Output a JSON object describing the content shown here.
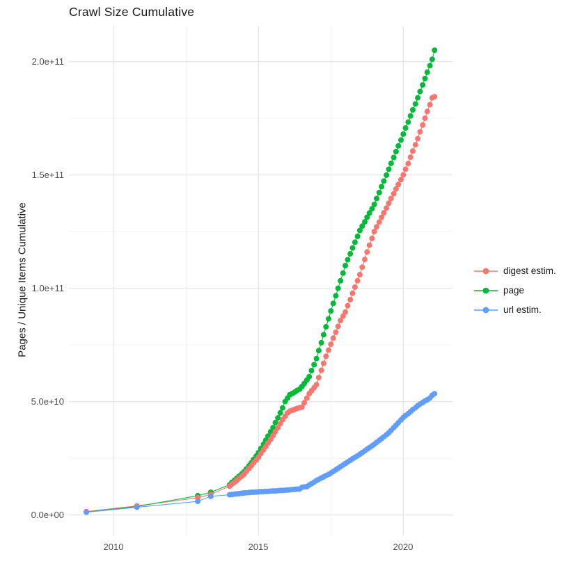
{
  "title": "Crawl Size Cumulative",
  "y_axis": {
    "title": "Pages / Unique Items Cumulative",
    "ticks": [
      "0.0e+00",
      "5.0e+10",
      "1.0e+11",
      "1.5e+11",
      "2.0e+11"
    ],
    "tick_values_billions": [
      0,
      50,
      100,
      150,
      200
    ]
  },
  "x_axis": {
    "title": "",
    "ticks": [
      "2010",
      "2015",
      "2020"
    ],
    "tick_values": [
      2010,
      2015,
      2020
    ]
  },
  "legend": {
    "items": [
      {
        "label": "digest estim.",
        "color": "#F8766D"
      },
      {
        "label": "page",
        "color": "#00BA38"
      },
      {
        "label": "url estim.",
        "color": "#619CFF"
      }
    ]
  },
  "colors": {
    "digest": "#F8766D",
    "page": "#00BA38",
    "url": "#619CFF",
    "grid_major": "#e6e6e6",
    "grid_minor": "#f1f1f1",
    "tick_label": "#4d4d4d",
    "text": "#1a1a1a",
    "background": "#ffffff"
  },
  "chart_data": {
    "type": "scatter",
    "title": "Crawl Size Cumulative",
    "xlabel": "",
    "ylabel": "Pages / Unique Items Cumulative",
    "legend_position": "right",
    "grid": true,
    "y_unit_multiplier": 1000000000.0,
    "y_values_note": "y values are in billions (1e9) of pages / unique items, cumulative over Common Crawl releases",
    "xlim": [
      2008.45,
      2021.7
    ],
    "ylim_billions": [
      -9,
      215.5
    ],
    "x_major_gridlines": [
      2010,
      2015,
      2020
    ],
    "x_minor_gridlines": [
      2012.5,
      2017.5
    ],
    "y_major_gridlines_billions": [
      0,
      50,
      100,
      150,
      200
    ],
    "y_minor_gridlines_billions": [
      25,
      75,
      125,
      175
    ],
    "x": [
      2009.05,
      2010.8,
      2012.9,
      2013.35,
      2014.0,
      2014.08,
      2014.17,
      2014.25,
      2014.33,
      2014.42,
      2014.5,
      2014.58,
      2014.67,
      2014.75,
      2014.83,
      2014.92,
      2015.0,
      2015.08,
      2015.17,
      2015.25,
      2015.33,
      2015.42,
      2015.5,
      2015.58,
      2015.67,
      2015.75,
      2015.83,
      2015.92,
      2016.0,
      2016.08,
      2016.17,
      2016.25,
      2016.33,
      2016.42,
      2016.5,
      2016.58,
      2016.67,
      2016.75,
      2016.83,
      2016.92,
      2017.0,
      2017.08,
      2017.17,
      2017.25,
      2017.33,
      2017.42,
      2017.5,
      2017.58,
      2017.67,
      2017.75,
      2017.83,
      2017.92,
      2018.0,
      2018.08,
      2018.17,
      2018.25,
      2018.33,
      2018.42,
      2018.5,
      2018.58,
      2018.67,
      2018.75,
      2018.83,
      2018.92,
      2019.0,
      2019.08,
      2019.17,
      2019.25,
      2019.33,
      2019.42,
      2019.5,
      2019.58,
      2019.67,
      2019.75,
      2019.83,
      2019.92,
      2020.0,
      2020.08,
      2020.17,
      2020.25,
      2020.33,
      2020.42,
      2020.5,
      2020.58,
      2020.67,
      2020.75,
      2020.83,
      2020.92,
      2021.0,
      2021.08
    ],
    "series": [
      {
        "id": "digest",
        "name": "digest estim.",
        "color": "#F8766D",
        "y": [
          1.5,
          4.0,
          7.6,
          9.1,
          12.7,
          13.6,
          14.4,
          15.3,
          16.2,
          17.1,
          18.0,
          19.2,
          20.5,
          21.7,
          23.0,
          24.2,
          25.5,
          27.1,
          28.7,
          30.2,
          31.8,
          33.4,
          35.0,
          36.8,
          38.5,
          40.3,
          42.0,
          43.5,
          45.0,
          45.8,
          46.2,
          46.6,
          47.0,
          47.3,
          47.6,
          49.5,
          51.5,
          53.5,
          54.8,
          56.1,
          57.5,
          60.6,
          63.8,
          66.9,
          70.0,
          72.7,
          75.3,
          78.0,
          80.6,
          83.2,
          85.8,
          87.7,
          89.5,
          92.3,
          95.0,
          97.8,
          100.5,
          103.3,
          106.0,
          109.3,
          112.7,
          116.0,
          119.0,
          122.0,
          125.0,
          127.1,
          129.2,
          131.3,
          133.3,
          135.4,
          137.5,
          139.6,
          141.7,
          143.8,
          145.8,
          147.9,
          150.0,
          152.5,
          155.0,
          157.8,
          160.5,
          163.3,
          166.0,
          169.0,
          172.0,
          175.0,
          178.0,
          181.0,
          184.0,
          184.5
        ]
      },
      {
        "id": "page",
        "name": "page",
        "color": "#00BA38",
        "y": [
          1.3,
          3.7,
          8.5,
          10.0,
          13.3,
          14.4,
          15.3,
          16.2,
          17.1,
          18.1,
          19.0,
          20.3,
          21.7,
          23.0,
          24.5,
          26.0,
          27.5,
          29.3,
          31.2,
          33.0,
          34.8,
          36.7,
          38.5,
          40.7,
          42.8,
          45.0,
          47.2,
          50.0,
          51.5,
          53.0,
          53.6,
          54.2,
          54.9,
          55.5,
          56.7,
          58.0,
          59.5,
          61.0,
          63.7,
          66.3,
          69.0,
          72.5,
          76.0,
          79.5,
          83.0,
          86.5,
          90.0,
          93.3,
          96.7,
          100.0,
          103.3,
          106.7,
          110.0,
          112.6,
          115.2,
          117.8,
          120.3,
          122.9,
          125.5,
          127.4,
          129.3,
          131.3,
          133.2,
          135.1,
          137.0,
          139.6,
          142.2,
          144.8,
          147.3,
          149.9,
          152.5,
          155.1,
          157.7,
          160.3,
          162.8,
          165.4,
          168.0,
          170.7,
          173.3,
          176.0,
          178.7,
          181.3,
          184.0,
          186.8,
          189.7,
          192.5,
          195.3,
          198.2,
          201.0,
          205.0
        ]
      },
      {
        "id": "url",
        "name": "url estim.",
        "color": "#619CFF",
        "y": [
          1.2,
          3.4,
          6.0,
          8.2,
          8.9,
          9.0,
          9.2,
          9.3,
          9.4,
          9.6,
          9.7,
          9.8,
          9.9,
          10.0,
          10.0,
          10.1,
          10.2,
          10.3,
          10.3,
          10.4,
          10.4,
          10.5,
          10.6,
          10.6,
          10.7,
          10.8,
          10.8,
          10.9,
          11.0,
          11.1,
          11.2,
          11.3,
          11.4,
          11.5,
          12.2,
          12.4,
          12.5,
          13.2,
          13.8,
          14.5,
          15.2,
          15.7,
          16.3,
          16.8,
          17.4,
          17.9,
          18.5,
          19.2,
          19.9,
          20.6,
          21.3,
          22.0,
          22.7,
          23.4,
          24.1,
          24.8,
          25.4,
          26.1,
          26.8,
          27.5,
          28.3,
          29.0,
          29.7,
          30.5,
          31.2,
          32.0,
          32.9,
          33.7,
          34.5,
          35.4,
          36.2,
          37.3,
          38.5,
          39.6,
          40.7,
          41.9,
          43.0,
          43.9,
          44.7,
          45.6,
          46.5,
          47.3,
          48.2,
          48.9,
          49.6,
          50.3,
          50.8,
          51.6,
          52.8,
          53.5
        ]
      }
    ]
  }
}
